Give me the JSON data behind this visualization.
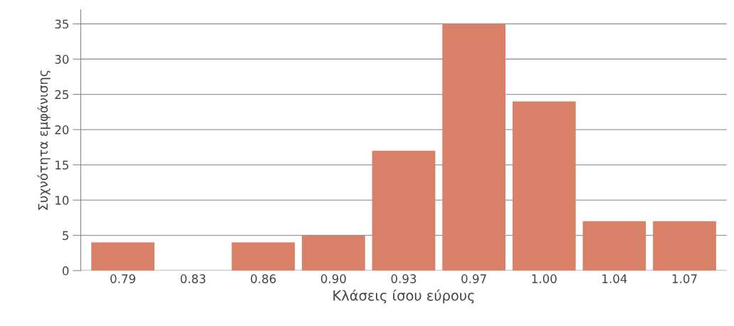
{
  "chart_data": {
    "type": "bar",
    "xlabel": "Κλάσεις ίσου εύρους",
    "ylabel": "Συχνότητα εμφάνισης",
    "categories": [
      "0.79",
      "0.83",
      "0.86",
      "0.90",
      "0.93",
      "0.97",
      "1.00",
      "1.04",
      "1.07"
    ],
    "values": [
      4,
      0,
      4,
      5,
      17,
      35,
      24,
      7,
      7
    ],
    "color": "#d98068",
    "ylim": [
      0,
      37
    ],
    "yticks": [
      0,
      5,
      10,
      15,
      20,
      25,
      30,
      35
    ],
    "grid": "y"
  }
}
